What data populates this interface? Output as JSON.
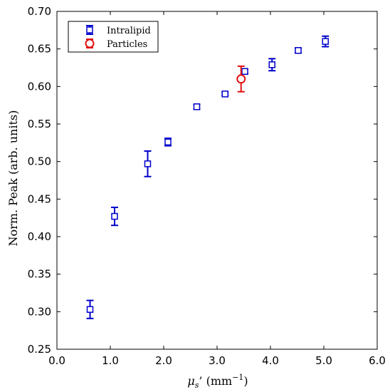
{
  "chart_data": {
    "type": "scatter",
    "xlabel_symbol": "μs",
    "xlabel_subscript": "s",
    "xlabel_rest": "’ (mm",
    "xlabel_exp": "−1",
    "xlabel_close": ")",
    "ylabel": "Norm. Peak (arb. units)",
    "xlim": [
      0.0,
      6.0
    ],
    "ylim": [
      0.25,
      0.7
    ],
    "x_ticks": [
      "0.0",
      "1.0",
      "2.0",
      "3.0",
      "4.0",
      "5.0",
      "6.0"
    ],
    "y_ticks": [
      "0.25",
      "0.30",
      "0.35",
      "0.40",
      "0.45",
      "0.50",
      "0.55",
      "0.60",
      "0.65",
      "0.70"
    ],
    "grid": false,
    "legend_position": "top-left",
    "series": [
      {
        "name": "Intralipid",
        "marker": "square",
        "color": "#0000cc",
        "points": [
          {
            "x": 0.62,
            "y": 0.303,
            "err": 0.012
          },
          {
            "x": 1.08,
            "y": 0.427,
            "err": 0.012
          },
          {
            "x": 1.7,
            "y": 0.497,
            "err": 0.017
          },
          {
            "x": 2.08,
            "y": 0.526,
            "err": 0.005
          },
          {
            "x": 2.62,
            "y": 0.573,
            "err": 0.003
          },
          {
            "x": 3.15,
            "y": 0.59,
            "err": 0.002
          },
          {
            "x": 3.52,
            "y": 0.62,
            "err": 0.003
          },
          {
            "x": 4.03,
            "y": 0.629,
            "err": 0.008
          },
          {
            "x": 4.52,
            "y": 0.648,
            "err": 0.003
          },
          {
            "x": 5.03,
            "y": 0.66,
            "err": 0.007
          }
        ]
      },
      {
        "name": "Particles",
        "marker": "circle",
        "color": "#e01010",
        "points": [
          {
            "x": 3.45,
            "y": 0.61,
            "err": 0.017
          }
        ]
      }
    ]
  }
}
